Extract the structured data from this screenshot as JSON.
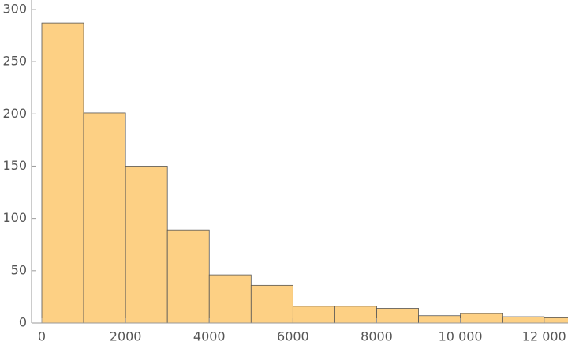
{
  "chart_data": {
    "type": "histogram",
    "bins": [
      0,
      1000,
      2000,
      3000,
      4000,
      5000,
      6000,
      7000,
      8000,
      9000,
      10000,
      11000,
      12000,
      13000
    ],
    "values": [
      287,
      201,
      150,
      89,
      46,
      36,
      16,
      16,
      14,
      7,
      9,
      6,
      5
    ],
    "color": "#fdd084",
    "xlim": [
      -245,
      12570
    ],
    "ylim": [
      0,
      309
    ],
    "xticks": [
      0,
      2000,
      4000,
      6000,
      8000,
      {
        "value": 10000,
        "label": "10 000"
      },
      {
        "value": 12000,
        "label": "12 000"
      }
    ],
    "yticks": [
      0,
      50,
      100,
      150,
      200,
      250,
      300
    ]
  }
}
